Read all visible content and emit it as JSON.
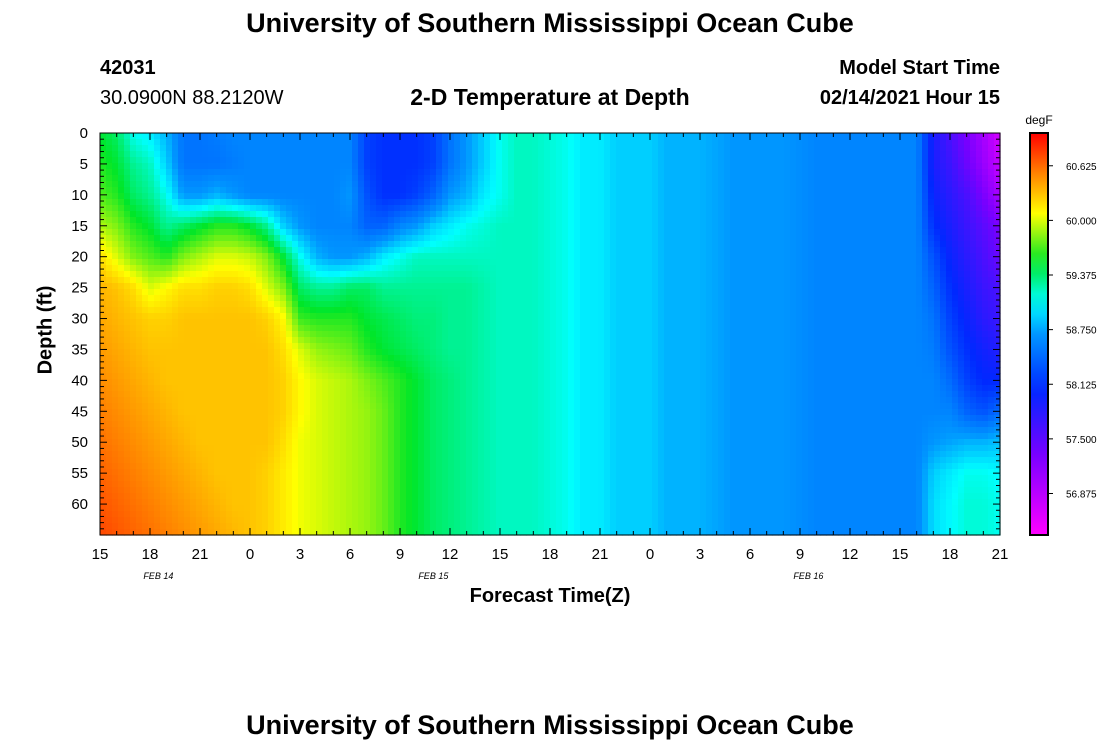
{
  "header": {
    "title": "University of Southern Mississippi Ocean Cube",
    "footer_title": "University of Southern Mississippi Ocean Cube",
    "station_id": "42031",
    "station_coords": "30.0900N 88.2120W",
    "subtitle": "2-D Temperature at Depth",
    "model_label": "Model Start Time",
    "model_time": "02/14/2021 Hour 15"
  },
  "chart_data": {
    "type": "heatmap",
    "title": "2-D Temperature at Depth",
    "xlabel": "Forecast Time(Z)",
    "ylabel": "Depth (ft)",
    "colorbar_label": "degF",
    "colorbar_ticks": [
      "60.625",
      "60.000",
      "59.375",
      "58.750",
      "58.125",
      "57.500",
      "56.875"
    ],
    "colorbar_tick_values": [
      60.625,
      60.0,
      59.375,
      58.75,
      58.125,
      57.5,
      56.875
    ],
    "value_range": [
      56.4,
      61.0
    ],
    "x_range_hours": [
      0,
      54
    ],
    "x_ticks": [
      "15",
      "18",
      "21",
      "0",
      "3",
      "6",
      "9",
      "12",
      "15",
      "18",
      "21",
      "0",
      "3",
      "6",
      "9",
      "12",
      "15",
      "18",
      "21"
    ],
    "date_labels": [
      {
        "text": "FEB 14",
        "hour": 3.5
      },
      {
        "text": "FEB 15",
        "hour": 20.0
      },
      {
        "text": "FEB 16",
        "hour": 42.5
      }
    ],
    "y_ticks": [
      "0",
      "5",
      "10",
      "15",
      "20",
      "25",
      "30",
      "35",
      "40",
      "45",
      "50",
      "55",
      "60"
    ],
    "y_range": [
      0,
      65
    ],
    "depths_ft": [
      0,
      5,
      10,
      15,
      20,
      25,
      30,
      35,
      40,
      45,
      50,
      55,
      60,
      65
    ],
    "hours": [
      0,
      1,
      2,
      3,
      4,
      5,
      6,
      7,
      8,
      9,
      10,
      11,
      12,
      13,
      14,
      15,
      16,
      17,
      18,
      19,
      20,
      21,
      22,
      23,
      24,
      25,
      26,
      27,
      28,
      29,
      30,
      31,
      32,
      33,
      34,
      35,
      36,
      37,
      38,
      39,
      40,
      41,
      42,
      43,
      44,
      45,
      46,
      47,
      48,
      49,
      50,
      51,
      52,
      53,
      54
    ],
    "temperature_degF": [
      [
        59.5,
        59.4,
        59.1,
        59.0,
        58.8,
        58.5,
        58.5,
        58.55,
        58.6,
        58.6,
        58.6,
        58.6,
        58.6,
        58.6,
        58.6,
        58.6,
        58.2,
        58.1,
        58.1,
        58.1,
        58.2,
        58.5,
        58.7,
        58.9,
        59.1,
        59.2,
        59.2,
        59.15,
        59.1,
        59.0,
        59.0,
        58.9,
        58.9,
        58.9,
        58.8,
        58.8,
        58.8,
        58.75,
        58.7,
        58.7,
        58.7,
        58.7,
        58.65,
        58.6,
        58.6,
        58.6,
        58.6,
        58.6,
        58.6,
        58.6,
        57.9,
        57.6,
        57.3,
        57.0,
        56.7
      ],
      [
        59.6,
        59.5,
        59.3,
        59.2,
        58.9,
        58.5,
        58.5,
        58.5,
        58.55,
        58.6,
        58.6,
        58.6,
        58.6,
        58.6,
        58.6,
        58.6,
        58.2,
        58.1,
        58.1,
        58.1,
        58.2,
        58.5,
        58.7,
        58.9,
        59.1,
        59.2,
        59.2,
        59.15,
        59.1,
        59.0,
        59.0,
        58.9,
        58.9,
        58.9,
        58.8,
        58.8,
        58.8,
        58.75,
        58.7,
        58.7,
        58.7,
        58.7,
        58.65,
        58.6,
        58.6,
        58.6,
        58.6,
        58.6,
        58.6,
        58.6,
        57.9,
        57.7,
        57.4,
        57.1,
        56.8
      ],
      [
        59.7,
        59.6,
        59.4,
        59.3,
        59.1,
        58.7,
        58.7,
        58.8,
        58.7,
        58.6,
        58.6,
        58.6,
        58.6,
        58.6,
        58.6,
        58.7,
        58.3,
        58.1,
        58.1,
        58.2,
        58.4,
        58.7,
        58.8,
        59.0,
        59.1,
        59.2,
        59.2,
        59.15,
        59.1,
        59.0,
        59.0,
        58.9,
        58.9,
        58.9,
        58.8,
        58.8,
        58.8,
        58.75,
        58.7,
        58.7,
        58.7,
        58.7,
        58.65,
        58.6,
        58.6,
        58.6,
        58.6,
        58.6,
        58.6,
        58.6,
        58.0,
        57.8,
        57.6,
        57.3,
        57.0
      ],
      [
        59.9,
        59.8,
        59.6,
        59.5,
        59.3,
        59.4,
        59.5,
        59.6,
        59.6,
        59.5,
        59.3,
        58.9,
        58.7,
        58.6,
        58.6,
        58.6,
        58.4,
        58.4,
        58.6,
        58.7,
        58.9,
        59.0,
        59.1,
        59.15,
        59.2,
        59.2,
        59.2,
        59.15,
        59.1,
        59.0,
        59.0,
        58.9,
        58.9,
        58.9,
        58.8,
        58.8,
        58.8,
        58.75,
        58.7,
        58.7,
        58.7,
        58.7,
        58.65,
        58.6,
        58.6,
        58.6,
        58.6,
        58.6,
        58.6,
        58.6,
        58.1,
        57.9,
        57.7,
        57.5,
        57.3
      ],
      [
        60.2,
        60.0,
        59.8,
        59.7,
        59.6,
        59.8,
        59.9,
        60.0,
        60.0,
        59.95,
        59.8,
        59.5,
        59.1,
        58.8,
        58.7,
        58.7,
        58.8,
        59.0,
        59.1,
        59.2,
        59.2,
        59.2,
        59.2,
        59.2,
        59.2,
        59.2,
        59.2,
        59.15,
        59.1,
        59.0,
        59.0,
        58.9,
        58.9,
        58.9,
        58.8,
        58.8,
        58.8,
        58.75,
        58.7,
        58.7,
        58.7,
        58.7,
        58.65,
        58.6,
        58.6,
        58.6,
        58.6,
        58.6,
        58.6,
        58.6,
        58.3,
        58.0,
        57.8,
        57.6,
        57.4
      ],
      [
        60.35,
        60.3,
        60.2,
        60.0,
        60.1,
        60.2,
        60.2,
        60.25,
        60.25,
        60.2,
        60.0,
        59.8,
        59.4,
        59.3,
        59.3,
        59.4,
        59.4,
        59.3,
        59.3,
        59.3,
        59.3,
        59.3,
        59.3,
        59.25,
        59.2,
        59.2,
        59.2,
        59.15,
        59.1,
        59.0,
        59.0,
        58.9,
        58.9,
        58.9,
        58.8,
        58.8,
        58.8,
        58.75,
        58.7,
        58.7,
        58.7,
        58.7,
        58.65,
        58.6,
        58.6,
        58.6,
        58.6,
        58.6,
        58.6,
        58.6,
        58.4,
        58.1,
        57.9,
        57.7,
        57.6
      ],
      [
        60.4,
        60.35,
        60.3,
        60.25,
        60.25,
        60.3,
        60.3,
        60.3,
        60.3,
        60.3,
        60.25,
        60.1,
        59.65,
        59.6,
        59.6,
        59.6,
        59.5,
        59.45,
        59.4,
        59.35,
        59.35,
        59.3,
        59.3,
        59.25,
        59.2,
        59.2,
        59.2,
        59.15,
        59.1,
        59.0,
        59.0,
        58.9,
        58.9,
        58.9,
        58.8,
        58.8,
        58.8,
        58.75,
        58.7,
        58.7,
        58.7,
        58.7,
        58.65,
        58.6,
        58.6,
        58.6,
        58.6,
        58.6,
        58.6,
        58.6,
        58.5,
        58.2,
        58.0,
        57.8,
        57.7
      ],
      [
        60.45,
        60.4,
        60.35,
        60.3,
        60.3,
        60.3,
        60.3,
        60.3,
        60.3,
        60.3,
        60.3,
        60.2,
        60.0,
        59.85,
        59.8,
        59.75,
        59.6,
        59.5,
        59.45,
        59.4,
        59.35,
        59.3,
        59.3,
        59.25,
        59.2,
        59.2,
        59.2,
        59.15,
        59.1,
        59.0,
        59.0,
        58.9,
        58.9,
        58.9,
        58.8,
        58.8,
        58.8,
        58.75,
        58.7,
        58.7,
        58.7,
        58.7,
        58.65,
        58.6,
        58.6,
        58.6,
        58.6,
        58.6,
        58.6,
        58.6,
        58.55,
        58.3,
        58.1,
        57.95,
        57.85
      ],
      [
        60.5,
        60.45,
        60.4,
        60.35,
        60.3,
        60.3,
        60.3,
        60.3,
        60.3,
        60.3,
        60.3,
        60.25,
        60.1,
        60.0,
        59.95,
        59.9,
        59.8,
        59.7,
        59.6,
        59.5,
        59.4,
        59.35,
        59.3,
        59.25,
        59.2,
        59.2,
        59.2,
        59.15,
        59.1,
        59.0,
        59.0,
        58.9,
        58.9,
        58.9,
        58.8,
        58.8,
        58.8,
        58.75,
        58.7,
        58.7,
        58.7,
        58.7,
        58.65,
        58.6,
        58.6,
        58.6,
        58.6,
        58.6,
        58.6,
        58.6,
        58.6,
        58.45,
        58.2,
        58.05,
        58.05
      ],
      [
        60.55,
        60.5,
        60.45,
        60.4,
        60.35,
        60.3,
        60.3,
        60.3,
        60.3,
        60.3,
        60.3,
        60.25,
        60.1,
        60.0,
        59.95,
        59.9,
        59.85,
        59.75,
        59.6,
        59.5,
        59.4,
        59.35,
        59.3,
        59.25,
        59.2,
        59.2,
        59.2,
        59.15,
        59.1,
        59.0,
        59.0,
        58.9,
        58.9,
        58.9,
        58.8,
        58.8,
        58.8,
        58.75,
        58.7,
        58.7,
        58.7,
        58.7,
        58.65,
        58.6,
        58.6,
        58.6,
        58.6,
        58.6,
        58.6,
        58.6,
        58.6,
        58.6,
        58.4,
        58.3,
        58.45
      ],
      [
        60.6,
        60.55,
        60.5,
        60.45,
        60.4,
        60.35,
        60.3,
        60.3,
        60.3,
        60.3,
        60.3,
        60.2,
        60.05,
        60.0,
        59.95,
        59.9,
        59.85,
        59.75,
        59.6,
        59.5,
        59.4,
        59.35,
        59.3,
        59.25,
        59.2,
        59.2,
        59.2,
        59.15,
        59.1,
        59.0,
        59.0,
        58.9,
        58.9,
        58.9,
        58.8,
        58.8,
        58.8,
        58.75,
        58.7,
        58.7,
        58.7,
        58.7,
        58.65,
        58.6,
        58.6,
        58.6,
        58.6,
        58.6,
        58.6,
        58.6,
        58.7,
        58.75,
        58.8,
        58.8,
        58.85
      ],
      [
        60.65,
        60.6,
        60.55,
        60.5,
        60.45,
        60.4,
        60.35,
        60.3,
        60.3,
        60.3,
        60.25,
        60.15,
        60.05,
        60.0,
        59.95,
        59.9,
        59.85,
        59.75,
        59.6,
        59.5,
        59.4,
        59.35,
        59.3,
        59.25,
        59.2,
        59.2,
        59.2,
        59.15,
        59.1,
        59.0,
        59.0,
        58.9,
        58.9,
        58.9,
        58.8,
        58.8,
        58.8,
        58.75,
        58.7,
        58.7,
        58.7,
        58.7,
        58.65,
        58.6,
        58.6,
        58.6,
        58.6,
        58.6,
        58.6,
        58.6,
        58.9,
        59.0,
        59.1,
        59.1,
        59.05
      ],
      [
        60.7,
        60.65,
        60.6,
        60.55,
        60.5,
        60.45,
        60.4,
        60.35,
        60.3,
        60.3,
        60.25,
        60.15,
        60.05,
        60.0,
        59.95,
        59.9,
        59.85,
        59.75,
        59.6,
        59.5,
        59.4,
        59.35,
        59.3,
        59.25,
        59.2,
        59.2,
        59.2,
        59.15,
        59.1,
        59.0,
        59.0,
        58.9,
        58.9,
        58.9,
        58.8,
        58.8,
        58.8,
        58.75,
        58.7,
        58.7,
        58.7,
        58.7,
        58.65,
        58.6,
        58.6,
        58.6,
        58.6,
        58.6,
        58.6,
        58.6,
        58.95,
        59.05,
        59.15,
        59.15,
        59.1
      ],
      [
        60.75,
        60.7,
        60.65,
        60.6,
        60.55,
        60.5,
        60.45,
        60.4,
        60.35,
        60.3,
        60.25,
        60.15,
        60.05,
        60.0,
        59.95,
        59.9,
        59.85,
        59.75,
        59.6,
        59.5,
        59.4,
        59.35,
        59.3,
        59.25,
        59.2,
        59.2,
        59.2,
        59.15,
        59.1,
        59.0,
        59.0,
        58.9,
        58.9,
        58.9,
        58.8,
        58.8,
        58.8,
        58.75,
        58.7,
        58.7,
        58.7,
        58.7,
        58.65,
        58.6,
        58.6,
        58.6,
        58.6,
        58.6,
        58.6,
        58.6,
        58.95,
        59.05,
        59.15,
        59.15,
        59.1
      ]
    ]
  }
}
